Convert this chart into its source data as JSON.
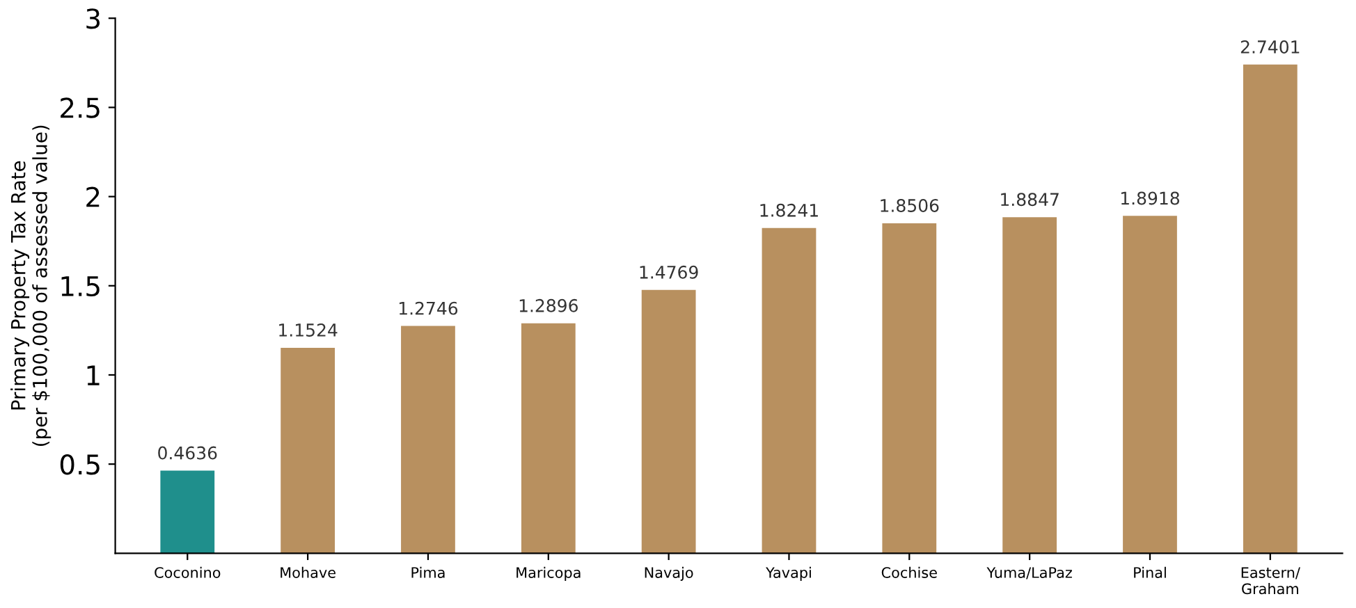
{
  "chart_data": {
    "type": "bar",
    "ylabel": "Primary Property Tax Rate\n(per $100,000 of assessed value)",
    "categories": [
      "Coconino",
      "Mohave",
      "Pima",
      "Maricopa",
      "Navajo",
      "Yavapi",
      "Cochise",
      "Yuma/LaPaz",
      "Pinal",
      "Eastern/\nGraham"
    ],
    "values": [
      0.4636,
      1.1524,
      1.2746,
      1.2896,
      1.4769,
      1.8241,
      1.8506,
      1.8847,
      1.8918,
      2.7401
    ],
    "colors": [
      "#1f8f8c",
      "#b8905f",
      "#b8905f",
      "#b8905f",
      "#b8905f",
      "#b8905f",
      "#b8905f",
      "#b8905f",
      "#b8905f",
      "#b8905f"
    ],
    "data_labels": true,
    "ylim": [
      0,
      3
    ],
    "yticks": [
      0.5,
      1,
      1.5,
      2,
      2.5,
      3
    ],
    "grid": false,
    "legend": false
  }
}
